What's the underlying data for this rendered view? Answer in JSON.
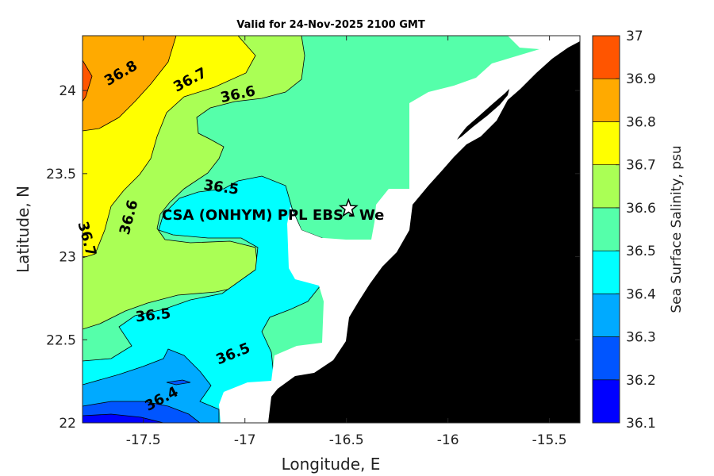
{
  "title": "Valid for 24-Nov-2025 2100 GMT",
  "x_axis": {
    "label": "Longitude, E",
    "ticks": [
      {
        "value": -17.5,
        "label": "-17.5"
      },
      {
        "value": -17,
        "label": "-17"
      },
      {
        "value": -16.5,
        "label": "-16.5"
      },
      {
        "value": -16,
        "label": "-16"
      },
      {
        "value": -15.5,
        "label": "-15.5"
      }
    ],
    "range": [
      -17.8,
      -15.35
    ]
  },
  "y_axis": {
    "label": "Latitude, N",
    "ticks": [
      {
        "value": 24,
        "label": "24"
      },
      {
        "value": 23.5,
        "label": "23.5"
      },
      {
        "value": 23,
        "label": "23"
      },
      {
        "value": 22.5,
        "label": "22.5"
      },
      {
        "value": 22,
        "label": "22"
      }
    ],
    "range": [
      22,
      24.33
    ]
  },
  "colorbar": {
    "title": "Sea Surface Salinity, psu",
    "levels": [
      "36.1",
      "36.2",
      "36.3",
      "36.4",
      "36.5",
      "36.6",
      "36.7",
      "36.8",
      "36.9",
      "37"
    ],
    "colors": {
      "36.1-36.2": "#0000ff",
      "36.2-36.3": "#0055ff",
      "36.3-36.4": "#00aaff",
      "36.4-36.5": "#00ffff",
      "36.5-36.6": "#55ffaa",
      "36.6-36.7": "#aaff55",
      "36.7-36.8": "#ffff00",
      "36.8-36.9": "#ffaa00",
      "36.9-37": "#ff5500"
    }
  },
  "land_color": "#000000",
  "nodata_color": "#ffffff",
  "contour_labels": [
    {
      "text": "36.8",
      "lon": -17.6,
      "lat": 24.08,
      "rotate": -30
    },
    {
      "text": "36.7",
      "lon": -17.26,
      "lat": 24.04,
      "rotate": -28
    },
    {
      "text": "36.6",
      "lon": -17.03,
      "lat": 23.95,
      "rotate": -12
    },
    {
      "text": "36.5",
      "lon": -17.12,
      "lat": 23.39,
      "rotate": 8
    },
    {
      "text": "36.6",
      "lon": -17.55,
      "lat": 23.23,
      "rotate": -75
    },
    {
      "text": "36.7",
      "lon": -17.8,
      "lat": 23.1,
      "rotate": 75
    },
    {
      "text": "36.5",
      "lon": -17.45,
      "lat": 22.62,
      "rotate": -6
    },
    {
      "text": "36.5",
      "lon": -17.05,
      "lat": 22.39,
      "rotate": -22
    },
    {
      "text": "36.4",
      "lon": -17.4,
      "lat": 22.12,
      "rotate": -28
    }
  ],
  "station": {
    "label": "CSA (ONHYM) PPL EBS  - We",
    "lon": -16.49,
    "lat": 23.29,
    "marker": "star-icon"
  }
}
